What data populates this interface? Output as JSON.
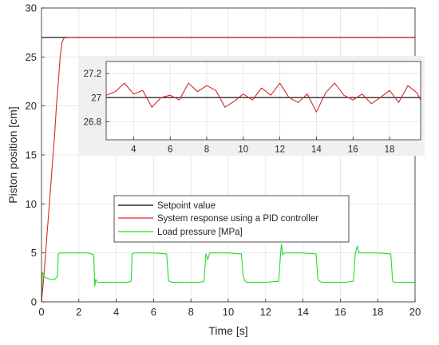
{
  "chart_data": [
    {
      "type": "line",
      "xlabel": "Time [s]",
      "ylabel": "Piston position [cm]",
      "xlim": [
        0,
        20
      ],
      "ylim": [
        0,
        30
      ],
      "xticks": [
        0,
        2,
        4,
        6,
        8,
        10,
        12,
        14,
        16,
        18,
        20
      ],
      "yticks": [
        0,
        5,
        10,
        15,
        20,
        25,
        30
      ],
      "grid": true,
      "legend_position": "center",
      "colors": {
        "setpoint": "#000000",
        "pid": "#d62728",
        "load": "#22dd22"
      },
      "series": [
        {
          "name": "Setpoint value",
          "x": [
            0,
            20
          ],
          "y": [
            27,
            27
          ]
        },
        {
          "name": "System response using a PID controller",
          "x": [
            0,
            0.1,
            0.2,
            0.3,
            0.4,
            0.5,
            0.6,
            0.7,
            0.8,
            0.9,
            1.0,
            1.1,
            1.2,
            1.3,
            1.4,
            1.6,
            2,
            4,
            6,
            8,
            10,
            12,
            14,
            16,
            18,
            20
          ],
          "y": [
            0,
            2,
            4.5,
            7,
            9.5,
            12,
            14.5,
            17,
            20,
            22.5,
            25,
            26.5,
            26.9,
            27.05,
            27.0,
            27.0,
            27.0,
            27.0,
            27.0,
            27.0,
            27.0,
            27.0,
            27.0,
            27.0,
            27.0,
            27.0
          ]
        },
        {
          "name": "Load pressure [MPa]",
          "x": [
            0,
            0.05,
            0.15,
            0.3,
            0.5,
            0.7,
            0.85,
            0.9,
            1.0,
            1.2,
            2.5,
            2.8,
            2.85,
            2.9,
            3.0,
            3.3,
            4.6,
            4.8,
            4.85,
            5.0,
            6.0,
            6.7,
            6.8,
            6.85,
            7.0,
            8.5,
            8.7,
            8.8,
            8.9,
            9.0,
            10.0,
            10.7,
            10.8,
            10.9,
            11.0,
            12.0,
            12.7,
            12.8,
            12.85,
            12.9,
            13.0,
            14.0,
            14.7,
            14.8,
            14.9,
            15.0,
            16.3,
            16.7,
            16.8,
            16.9,
            17.0,
            18.0,
            18.7,
            18.8,
            18.9,
            19.0,
            20.0
          ],
          "y": [
            0.5,
            3.0,
            2.6,
            2.4,
            2.3,
            2.3,
            2.6,
            4.9,
            5.0,
            5.0,
            5.0,
            4.8,
            1.6,
            2.3,
            2.0,
            2.0,
            2.0,
            2.1,
            4.9,
            5.0,
            5.0,
            4.9,
            2.2,
            2.1,
            2.0,
            2.0,
            2.1,
            4.9,
            4.3,
            5.0,
            5.0,
            4.9,
            2.6,
            2.1,
            2.0,
            2.0,
            2.1,
            4.9,
            5.9,
            4.8,
            5.0,
            5.0,
            4.9,
            2.3,
            2.1,
            2.0,
            2.0,
            2.1,
            4.9,
            5.7,
            5.0,
            5.0,
            4.9,
            2.1,
            2.0,
            2.0,
            2.0
          ]
        }
      ]
    },
    {
      "type": "line",
      "xlim": [
        2.5,
        19.7
      ],
      "ylim": [
        26.65,
        27.3
      ],
      "xticks": [
        4,
        6,
        8,
        10,
        12,
        14,
        16,
        18
      ],
      "yticks": [
        26.8,
        27,
        27.2
      ],
      "grid": true,
      "series": [
        {
          "x": [
            2.5,
            19.7
          ],
          "y": [
            27,
            27
          ]
        },
        {
          "x": [
            2.5,
            3,
            3.5,
            4,
            4.5,
            5,
            5.5,
            6,
            6.5,
            7,
            7.5,
            8,
            8.5,
            9,
            9.5,
            10,
            10.5,
            11,
            11.5,
            12,
            12.5,
            13,
            13.5,
            14,
            14.5,
            15,
            15.5,
            16,
            16.5,
            17,
            17.5,
            18,
            18.5,
            19,
            19.5,
            19.7
          ],
          "y": [
            27.02,
            27.05,
            27.12,
            27.03,
            27.06,
            26.92,
            27.0,
            27.02,
            26.98,
            27.12,
            27.05,
            27.1,
            27.06,
            26.92,
            26.97,
            27.03,
            26.98,
            27.08,
            27.02,
            27.12,
            27.0,
            26.96,
            27.03,
            26.88,
            27.04,
            27.12,
            27.02,
            26.98,
            27.03,
            26.95,
            27.0,
            27.06,
            26.96,
            27.1,
            27.04,
            26.98
          ]
        }
      ]
    }
  ]
}
